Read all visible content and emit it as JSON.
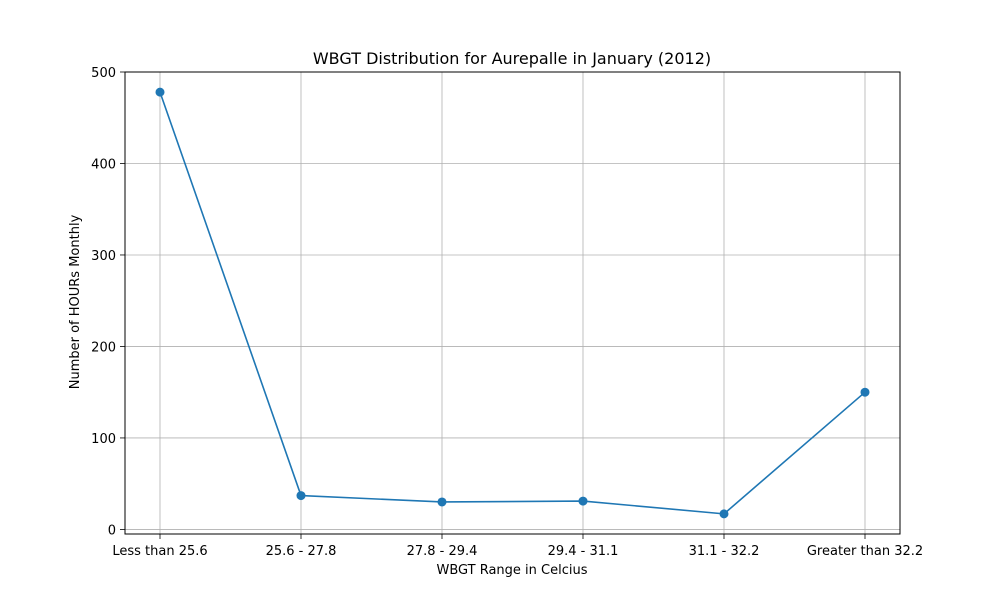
{
  "chart_data": {
    "type": "line",
    "title": "WBGT Distribution for Aurepalle in January (2012)",
    "xlabel": "WBGT Range in Celcius",
    "ylabel": "Number of HOURs Monthly",
    "categories": [
      "Less than 25.6",
      "25.6 - 27.8",
      "27.8 - 29.4",
      "29.4 - 31.1",
      "31.1 - 32.2",
      "Greater than 32.2"
    ],
    "series": [
      {
        "values": [
          478,
          37,
          30,
          31,
          17,
          150
        ],
        "color": "#1f77b4",
        "marker": "circle"
      }
    ],
    "ylim": [
      -5,
      500
    ],
    "yticks": [
      0,
      100,
      200,
      300,
      400,
      500
    ],
    "grid": true,
    "legend": false
  }
}
